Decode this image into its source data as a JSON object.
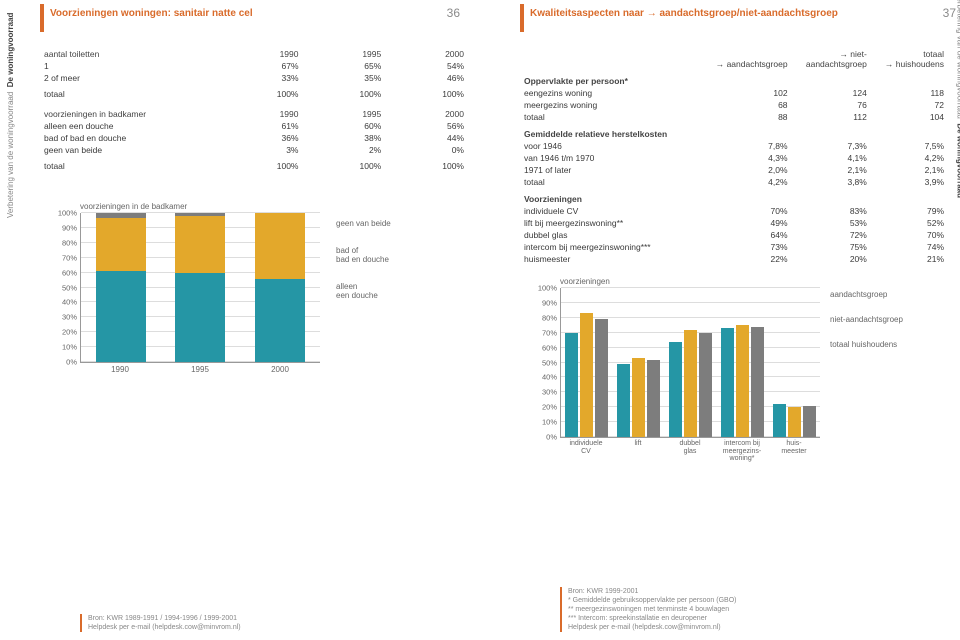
{
  "colors": {
    "accent": "#d96b2b",
    "teal": "#2596a5",
    "mustard": "#e3a82b",
    "grey": "#7d7d7d",
    "lightgrey": "#dddddd",
    "text_muted": "#888888"
  },
  "left": {
    "title": "Voorzieningen woningen: sanitair natte cel",
    "page_number": "36",
    "side_label_small": "Verbetering van de woningvoorraad",
    "side_label_bold": "De woningvoorraad",
    "tables": {
      "toiletten": {
        "header": [
          "aantal toiletten",
          "1990",
          "1995",
          "2000"
        ],
        "rows": [
          [
            "1",
            "67%",
            "65%",
            "54%"
          ],
          [
            "2 of meer",
            "33%",
            "35%",
            "46%"
          ]
        ],
        "totaal": [
          "totaal",
          "100%",
          "100%",
          "100%"
        ]
      },
      "badkamer": {
        "header": [
          "voorzieningen in badkamer",
          "1990",
          "1995",
          "2000"
        ],
        "rows": [
          [
            "alleen een douche",
            "61%",
            "60%",
            "56%"
          ],
          [
            "bad of bad en douche",
            "36%",
            "38%",
            "44%"
          ],
          [
            "geen van beide",
            "3%",
            "2%",
            "0%"
          ]
        ],
        "totaal": [
          "totaal",
          "100%",
          "100%",
          "100%"
        ]
      }
    },
    "chart": {
      "title": "voorzieningen in de badkamer",
      "type": "stacked-bar",
      "ymax": 100,
      "ytick_step": 10,
      "categories": [
        "1990",
        "1995",
        "2000"
      ],
      "series": [
        {
          "name": "alleen een douche",
          "color": "#2596a5",
          "values": [
            61,
            60,
            56
          ]
        },
        {
          "name": "bad of bad en douche",
          "color": "#e3a82b",
          "values": [
            36,
            38,
            44
          ]
        },
        {
          "name": "geen van beide",
          "color": "#7d7d7d",
          "values": [
            3,
            2,
            0
          ]
        }
      ],
      "legend_labels": [
        "geen van beide",
        "bad of\nbad en douche",
        "alleen\neen douche"
      ]
    },
    "source": "Bron: KWR 1989-1991 / 1994-1996 / 1999-2001\nHelpdesk per e-mail (helpdesk.cow@minvrom.nl)"
  },
  "right": {
    "title": "Kwaliteitsaspecten naar → aandachtsgroep/niet-aandachtsgroep",
    "page_number": "37",
    "side_label_small": "Verbetering van de woningvoorraad",
    "side_label_bold": "De woningvoorraad",
    "table": {
      "header": [
        "",
        "→ aandachtsgroep",
        "→ niet-\naandachtsgroep",
        "totaal\n→ huishoudens"
      ],
      "sections": [
        {
          "title": "Oppervlakte per persoon*",
          "rows": [
            [
              "eengezins woning",
              "102",
              "124",
              "118"
            ],
            [
              "meergezins woning",
              "68",
              "76",
              "72"
            ],
            [
              "totaal",
              "88",
              "112",
              "104"
            ]
          ]
        },
        {
          "title": "Gemiddelde relatieve herstelkosten",
          "rows": [
            [
              "voor 1946",
              "7,8%",
              "7,3%",
              "7,5%"
            ],
            [
              "van 1946 t/m 1970",
              "4,3%",
              "4,1%",
              "4,2%"
            ],
            [
              "1971 of later",
              "2,0%",
              "2,1%",
              "2,1%"
            ],
            [
              "totaal",
              "4,2%",
              "3,8%",
              "3,9%"
            ]
          ]
        },
        {
          "title": "Voorzieningen",
          "rows": [
            [
              "individuele CV",
              "70%",
              "83%",
              "79%"
            ],
            [
              "lift bij meergezinswoning**",
              "49%",
              "53%",
              "52%"
            ],
            [
              "dubbel glas",
              "64%",
              "72%",
              "70%"
            ],
            [
              "intercom bij meergezinswoning***",
              "73%",
              "75%",
              "74%"
            ],
            [
              "huismeester",
              "22%",
              "20%",
              "21%"
            ]
          ]
        }
      ]
    },
    "chart": {
      "title": "voorzieningen",
      "type": "grouped-bar",
      "ymax": 100,
      "ytick_step": 10,
      "categories": [
        "individuele\nCV",
        "lift",
        "dubbel\nglas",
        "intercom bij\nmeergezins-\nwoning*",
        "huis-\nmeester"
      ],
      "series": [
        {
          "name": "aandachtsgroep",
          "color": "#2596a5",
          "values": [
            70,
            49,
            64,
            73,
            22
          ]
        },
        {
          "name": "niet-aandachtsgroep",
          "color": "#e3a82b",
          "values": [
            83,
            53,
            72,
            75,
            20
          ]
        },
        {
          "name": "totaal huishoudens",
          "color": "#7d7d7d",
          "values": [
            79,
            52,
            70,
            74,
            21
          ]
        }
      ]
    },
    "source": "Bron: KWR 1999-2001\n* Gemiddelde gebruiksoppervlakte per persoon (GBO)\n** meergezinswoningen met tenminste 4 bouwlagen\n*** Intercom: spreekinstallatie en deuropener\nHelpdesk per e-mail (helpdesk.cow@minvrom.nl)"
  }
}
